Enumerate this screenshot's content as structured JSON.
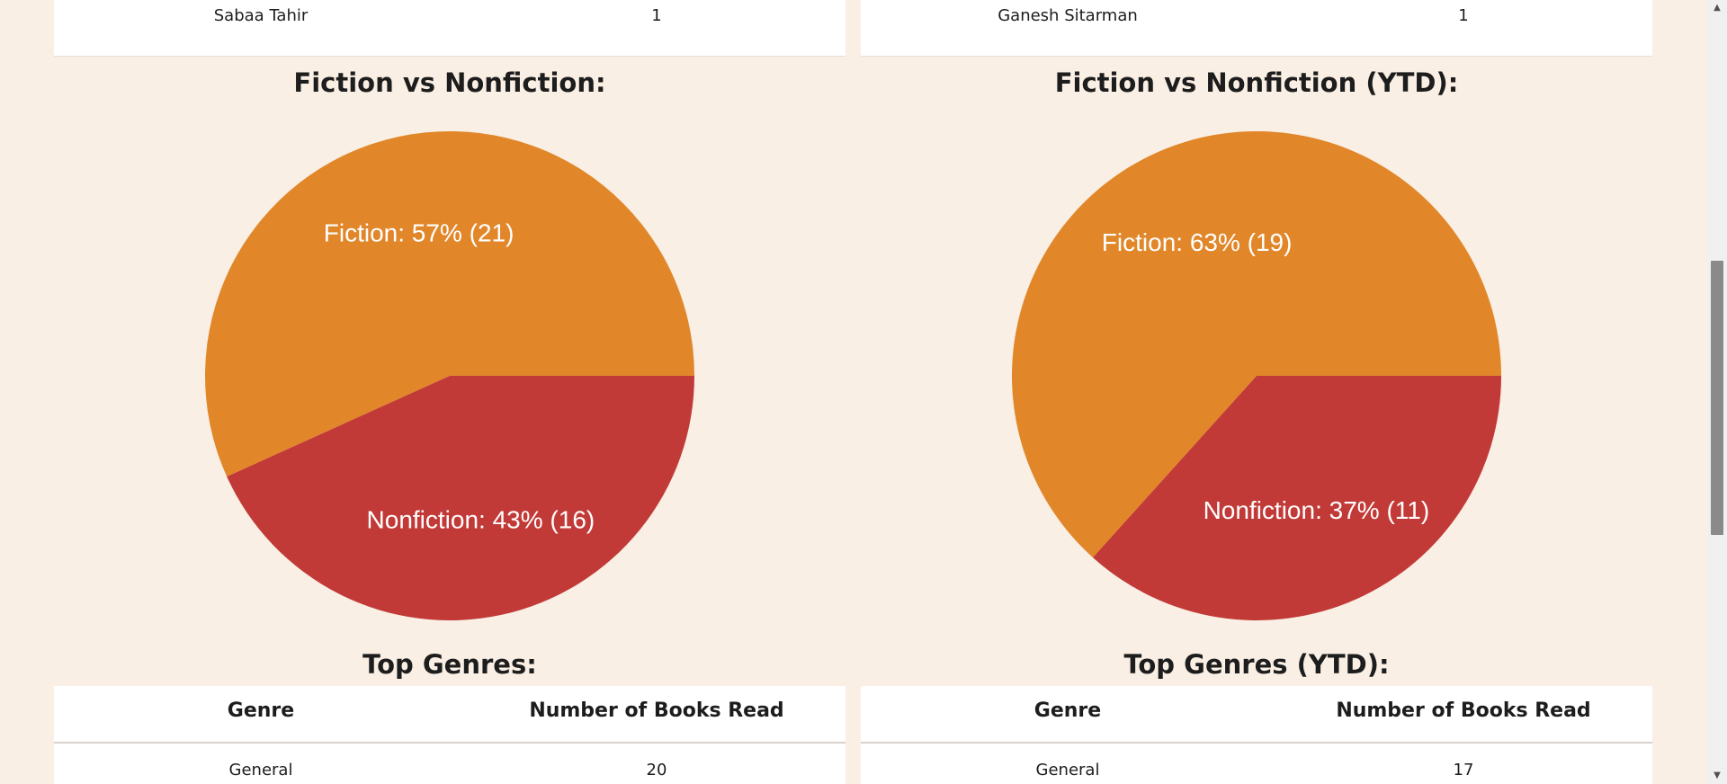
{
  "top_authors": {
    "all_time_last_row": {
      "author": "Sabaa Tahir",
      "count": "1"
    },
    "ytd_last_row": {
      "author": "Ganesh Sitarman",
      "count": "1"
    }
  },
  "fiction_pie": {
    "title": "Fiction vs Nonfiction:",
    "chart_data": {
      "type": "pie",
      "slices": [
        {
          "name": "Fiction",
          "value": 21,
          "percent": 57,
          "color": "#e1872a",
          "label": "Fiction: 57% (21)"
        },
        {
          "name": "Nonfiction",
          "value": 16,
          "percent": 43,
          "color": "#c23a37",
          "label": "Nonfiction: 43% (16)"
        }
      ]
    }
  },
  "fiction_pie_ytd": {
    "title": "Fiction vs Nonfiction (YTD):",
    "chart_data": {
      "type": "pie",
      "slices": [
        {
          "name": "Fiction",
          "value": 19,
          "percent": 63,
          "color": "#e1872a",
          "label": "Fiction: 63% (19)"
        },
        {
          "name": "Nonfiction",
          "value": 11,
          "percent": 37,
          "color": "#c23a37",
          "label": "Nonfiction: 37% (11)"
        }
      ]
    }
  },
  "top_genres": {
    "title": "Top Genres:",
    "headers": [
      "Genre",
      "Number of Books Read"
    ],
    "rows": [
      {
        "genre": "General",
        "count": "20"
      }
    ]
  },
  "top_genres_ytd": {
    "title": "Top Genres (YTD):",
    "headers": [
      "Genre",
      "Number of Books Read"
    ],
    "rows": [
      {
        "genre": "General",
        "count": "17"
      }
    ]
  },
  "scrollbar": {
    "up_icon": "arrow-up-icon",
    "down_icon": "arrow-down-icon"
  }
}
